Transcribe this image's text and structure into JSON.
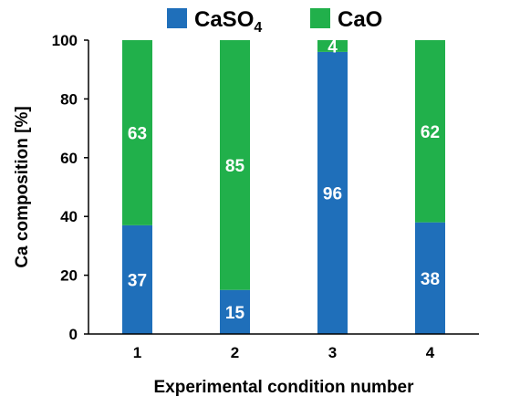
{
  "chart_data": {
    "type": "bar",
    "stacked": true,
    "categories": [
      "1",
      "2",
      "3",
      "4"
    ],
    "series": [
      {
        "name": "CaSO4",
        "label_main": "CaSO",
        "label_sub": "4",
        "color": "#1f6fba",
        "values": [
          37,
          15,
          96,
          38
        ]
      },
      {
        "name": "CaO",
        "label_main": "CaO",
        "label_sub": "",
        "color": "#21b04b",
        "values": [
          63,
          85,
          4,
          62
        ]
      }
    ],
    "data_labels": {
      "CaSO4": [
        "37",
        "15",
        "96",
        "38"
      ],
      "CaO": [
        "63",
        "85",
        "4",
        "62"
      ]
    },
    "xlabel": "Experimental condition number",
    "ylabel": "Ca composition [%]",
    "ylim": [
      0,
      100
    ],
    "yticks": [
      "0",
      "20",
      "40",
      "60",
      "80",
      "100"
    ],
    "grid": false,
    "legend_position": "top"
  }
}
